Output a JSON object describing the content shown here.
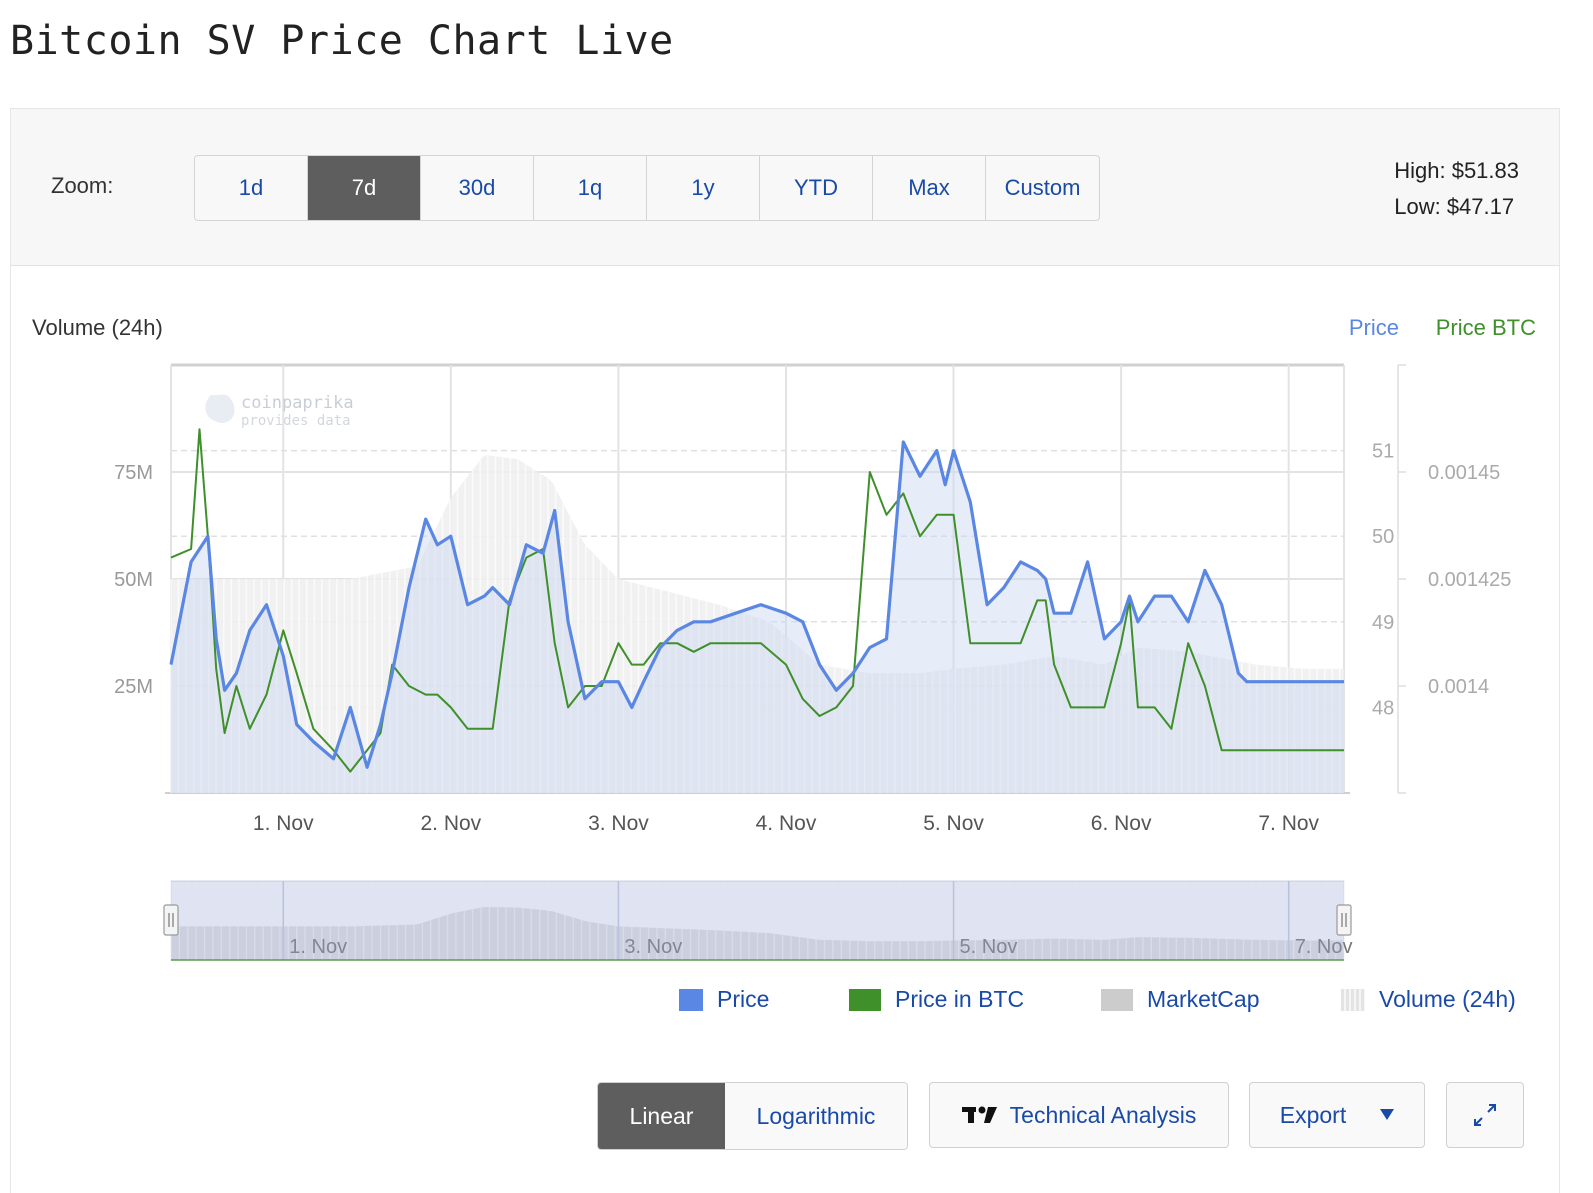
{
  "page": {
    "title": "Bitcoin SV Price Chart Live"
  },
  "toolbar": {
    "zoom_label": "Zoom:",
    "zoom_options": [
      "1d",
      "7d",
      "30d",
      "1q",
      "1y",
      "YTD",
      "Max",
      "Custom"
    ],
    "zoom_active": "7d",
    "high_label": "High: $51.83",
    "low_label": "Low: $47.17"
  },
  "chart_header": {
    "left_title": "Volume (24h)",
    "right_title_price": "Price",
    "right_title_btc": "Price BTC"
  },
  "watermark": {
    "line1": "coinpaprika",
    "line2": "provides data"
  },
  "colors": {
    "price": "#5b87e4",
    "price_btc": "#3f8f2a",
    "marketcap": "#cccccc",
    "volume": "#e4e4e4",
    "accent_link": "#1a4aa8",
    "active_button": "#5e5e5e"
  },
  "chart_data": {
    "type": "line",
    "x_ticks": [
      "1. Nov",
      "2. Nov",
      "3. Nov",
      "4. Nov",
      "5. Nov",
      "6. Nov",
      "7. Nov"
    ],
    "x_range_days": [
      0.33,
      7.33
    ],
    "left_axis": {
      "label": "Volume (24h)",
      "ticks": [
        "25M",
        "50M",
        "75M"
      ],
      "tick_values": [
        25,
        50,
        75
      ],
      "range": [
        0,
        100
      ]
    },
    "price_axis": {
      "label": "Price",
      "ticks": [
        "48",
        "49",
        "50",
        "51"
      ],
      "tick_values": [
        48,
        49,
        50,
        51
      ],
      "range": [
        47.0,
        52.0
      ]
    },
    "btc_axis": {
      "label": "Price BTC",
      "ticks": [
        "0.0014",
        "0.001425",
        "0.00145"
      ],
      "tick_values": [
        0.0014,
        0.001425,
        0.00145
      ],
      "range": [
        0.001375,
        0.001475
      ]
    },
    "series": [
      {
        "name": "Price",
        "axis": "price",
        "x": [
          0.33,
          0.45,
          0.55,
          0.6,
          0.65,
          0.72,
          0.8,
          0.9,
          1.0,
          1.08,
          1.18,
          1.3,
          1.4,
          1.5,
          1.58,
          1.65,
          1.75,
          1.85,
          1.92,
          2.0,
          2.1,
          2.2,
          2.25,
          2.35,
          2.45,
          2.55,
          2.62,
          2.7,
          2.8,
          2.9,
          3.0,
          3.08,
          3.15,
          3.25,
          3.35,
          3.45,
          3.55,
          3.7,
          3.85,
          4.0,
          4.1,
          4.2,
          4.3,
          4.4,
          4.5,
          4.6,
          4.7,
          4.8,
          4.9,
          4.95,
          5.0,
          5.1,
          5.2,
          5.3,
          5.4,
          5.5,
          5.55,
          5.6,
          5.7,
          5.8,
          5.9,
          6.0,
          6.05,
          6.1,
          6.2,
          6.3,
          6.4,
          6.5,
          6.6,
          6.7,
          6.75,
          6.85,
          6.95,
          7.05,
          7.1,
          7.2,
          7.33
        ],
        "values": [
          48.5,
          49.7,
          50.0,
          48.8,
          48.2,
          48.4,
          48.9,
          49.2,
          48.6,
          47.8,
          47.6,
          47.4,
          48.0,
          47.3,
          47.8,
          48.4,
          49.4,
          50.2,
          49.9,
          50.0,
          49.2,
          49.3,
          49.4,
          49.2,
          49.9,
          49.8,
          50.3,
          49.0,
          48.1,
          48.3,
          48.3,
          48.0,
          48.3,
          48.7,
          48.9,
          49.0,
          49.0,
          49.1,
          49.2,
          49.1,
          49.0,
          48.5,
          48.2,
          48.4,
          48.7,
          48.8,
          51.1,
          50.7,
          51.0,
          50.6,
          51.0,
          50.4,
          49.2,
          49.4,
          49.7,
          49.6,
          49.5,
          49.1,
          49.1,
          49.7,
          48.8,
          49.0,
          49.3,
          49.0,
          49.3,
          49.3,
          49.0,
          49.6,
          49.2,
          48.4,
          48.3,
          48.3,
          48.3,
          48.3,
          48.3,
          48.3,
          48.3
        ]
      },
      {
        "name": "Price in BTC",
        "axis": "btc",
        "x": [
          0.33,
          0.45,
          0.5,
          0.55,
          0.6,
          0.65,
          0.72,
          0.8,
          0.9,
          1.0,
          1.08,
          1.18,
          1.3,
          1.4,
          1.5,
          1.58,
          1.65,
          1.75,
          1.85,
          1.92,
          2.0,
          2.1,
          2.2,
          2.25,
          2.35,
          2.45,
          2.55,
          2.62,
          2.7,
          2.8,
          2.9,
          3.0,
          3.08,
          3.15,
          3.25,
          3.35,
          3.45,
          3.55,
          3.7,
          3.85,
          4.0,
          4.1,
          4.2,
          4.3,
          4.4,
          4.5,
          4.6,
          4.7,
          4.8,
          4.9,
          4.95,
          5.0,
          5.1,
          5.2,
          5.3,
          5.4,
          5.5,
          5.55,
          5.6,
          5.7,
          5.8,
          5.9,
          6.0,
          6.05,
          6.1,
          6.2,
          6.3,
          6.4,
          6.5,
          6.6,
          6.7,
          6.75,
          6.85,
          6.95,
          7.05,
          7.1,
          7.2,
          7.33
        ],
        "values": [
          0.00143,
          0.001432,
          0.00146,
          0.001435,
          0.001404,
          0.001389,
          0.0014,
          0.00139,
          0.001398,
          0.001413,
          0.001403,
          0.00139,
          0.001385,
          0.00138,
          0.001385,
          0.001389,
          0.001405,
          0.0014,
          0.001398,
          0.001398,
          0.001395,
          0.00139,
          0.00139,
          0.00139,
          0.00142,
          0.00143,
          0.001432,
          0.00141,
          0.001395,
          0.0014,
          0.0014,
          0.00141,
          0.001405,
          0.001405,
          0.00141,
          0.00141,
          0.001408,
          0.00141,
          0.00141,
          0.00141,
          0.001405,
          0.001397,
          0.001393,
          0.001395,
          0.0014,
          0.00145,
          0.00144,
          0.001445,
          0.001435,
          0.00144,
          0.00144,
          0.00144,
          0.00141,
          0.00141,
          0.00141,
          0.00141,
          0.00142,
          0.00142,
          0.001405,
          0.001395,
          0.001395,
          0.001395,
          0.00141,
          0.00142,
          0.001395,
          0.001395,
          0.00139,
          0.00141,
          0.0014,
          0.001385,
          0.001385,
          0.001385,
          0.001385,
          0.001385,
          0.001385,
          0.001385,
          0.001385,
          0.001385
        ]
      },
      {
        "name": "MarketCap",
        "axis": "price",
        "x": [],
        "values": []
      },
      {
        "name": "Volume (24h)",
        "axis": "volume",
        "x": [
          0.33,
          0.6,
          1.0,
          1.4,
          1.8,
          2.0,
          2.2,
          2.4,
          2.6,
          2.8,
          3.0,
          3.3,
          3.6,
          3.9,
          4.2,
          4.5,
          4.8,
          5.0,
          5.3,
          5.6,
          5.9,
          6.1,
          6.4,
          6.8,
          7.1,
          7.33
        ],
        "values": [
          50,
          50,
          50,
          50,
          53,
          69,
          79,
          78,
          73,
          58,
          50,
          47,
          44,
          40,
          30,
          28,
          28,
          29,
          30,
          32,
          30,
          34,
          33,
          30,
          29,
          29
        ]
      }
    ],
    "navigator": {
      "x_ticks": [
        "1. Nov",
        "3. Nov",
        "5. Nov",
        "7. Nov"
      ]
    },
    "legend": [
      "Price",
      "Price in BTC",
      "MarketCap",
      "Volume (24h)"
    ],
    "grid": true,
    "legend_placement": "bottom-right"
  },
  "controls": {
    "scale_options": [
      "Linear",
      "Logarithmic"
    ],
    "scale_active": "Linear",
    "technical_analysis_label": "Technical Analysis",
    "export_label": "Export",
    "fullscreen_icon": "expand-icon",
    "tradingview_icon": "tradingview-logo-icon",
    "export_caret_icon": "caret-down-icon"
  }
}
